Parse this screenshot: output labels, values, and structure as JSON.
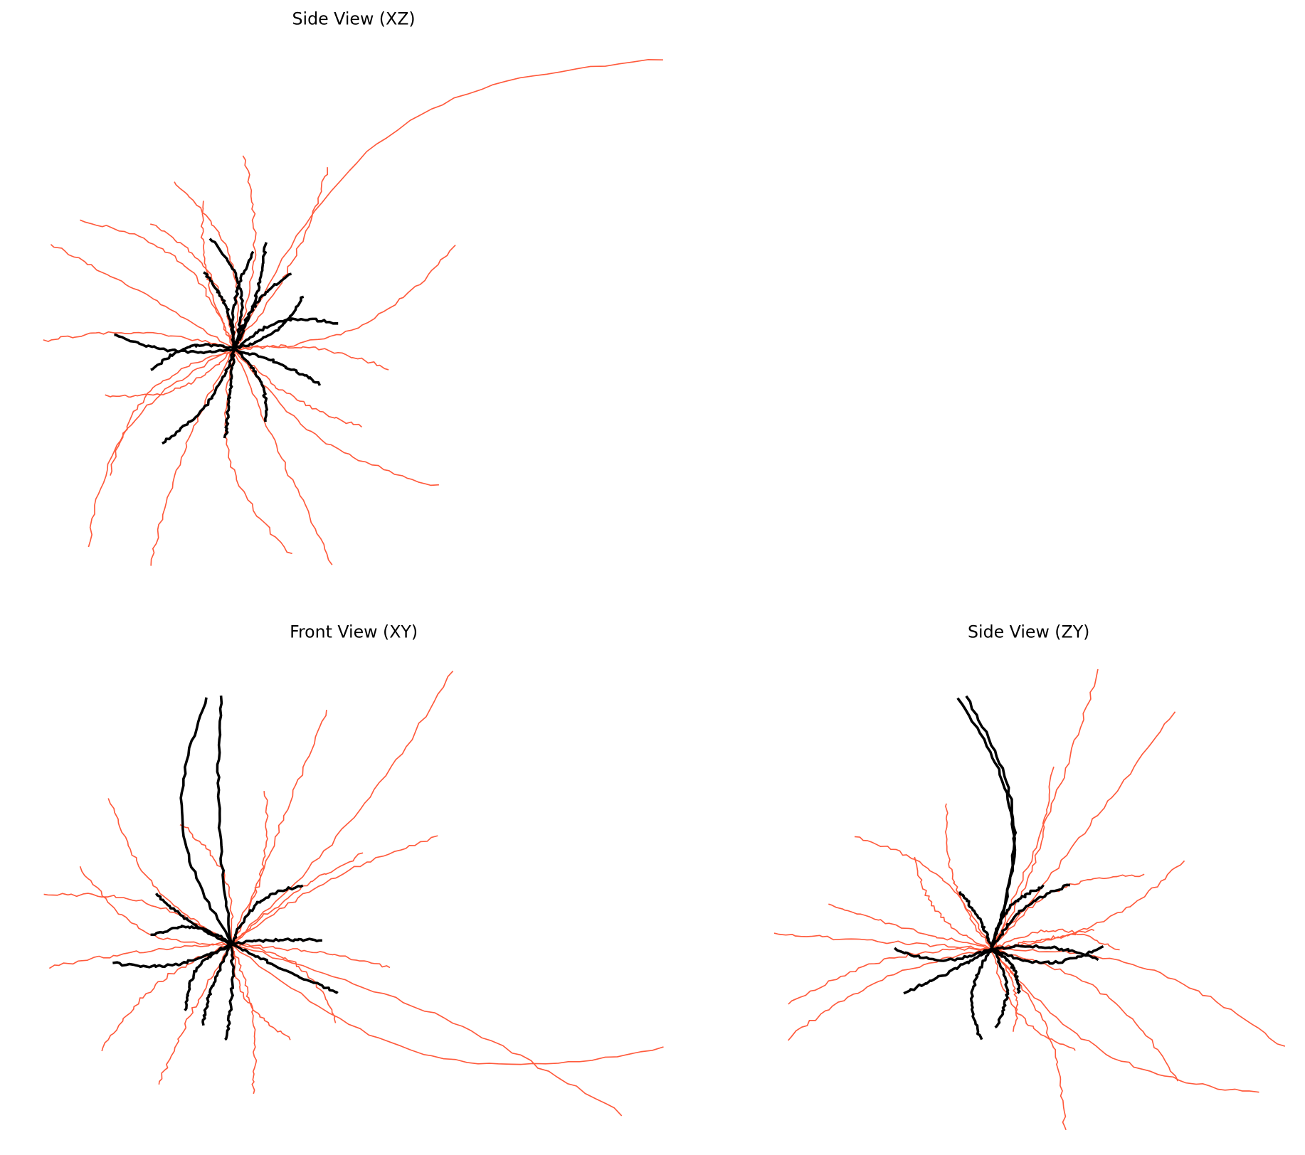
{
  "panels": [
    {
      "id": "xz",
      "title": "Side View (XZ)"
    },
    {
      "id": "xy",
      "title": "Front View (XY)"
    },
    {
      "id": "zy",
      "title": "Side View (ZY)"
    }
  ],
  "colors": {
    "dendrite": "#000000",
    "axon": "#ff5a3c",
    "background": "#ffffff"
  },
  "axes_visible": false
}
